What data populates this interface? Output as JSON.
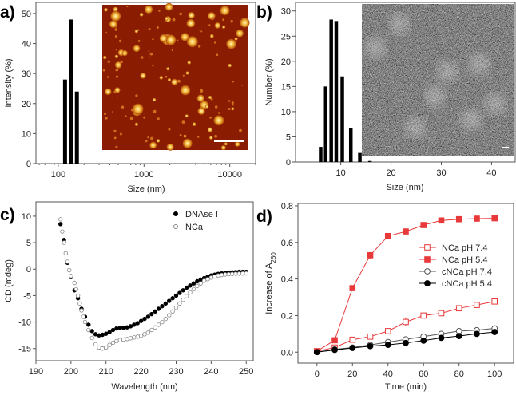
{
  "chart_data": [
    {
      "panel_label": "a)",
      "type": "bar",
      "xscale": "log",
      "xlabel": "Size (nm)",
      "ylabel": "Intensity (%)",
      "xlim": [
        55,
        20000
      ],
      "ylim": [
        0,
        53.7
      ],
      "xticks": [
        100,
        1000,
        10000
      ],
      "xtick_labels": [
        "100",
        "1000",
        "10000"
      ],
      "yticks": [
        0,
        10,
        20,
        30,
        40,
        50
      ],
      "ytick_labels": [
        "0",
        "10",
        "20",
        "30",
        "40",
        "50"
      ],
      "x": [
        120,
        140,
        165
      ],
      "values": [
        28,
        48,
        24
      ],
      "bar_color": "#000000",
      "inset": "AFM image of particles with scale bar"
    },
    {
      "panel_label": "b)",
      "type": "bar",
      "xlabel": "Size (nm)",
      "ylabel": "Number (%)",
      "xlim": [
        1,
        44.7
      ],
      "ylim": [
        0,
        31.7
      ],
      "xticks": [
        10,
        20,
        30,
        40
      ],
      "xtick_labels": [
        "10",
        "20",
        "30",
        "40"
      ],
      "yticks": [
        0,
        5,
        10,
        15,
        20,
        25,
        30
      ],
      "ytick_labels": [
        "0",
        "5",
        "10",
        "15",
        "20",
        "25",
        "30"
      ],
      "x": [
        6,
        7,
        8.1,
        9.1,
        10.3,
        12,
        13.8,
        15.8
      ],
      "values": [
        3,
        15,
        28.3,
        28,
        17,
        6.8,
        1.8,
        0.2
      ],
      "bar_color": "#000000",
      "inset": "TEM image with scale bar"
    },
    {
      "panel_label": "c)",
      "type": "scatter",
      "xlabel": "Wavelength (nm)",
      "ylabel": "CD (mdeg)",
      "xlim": [
        190,
        252
      ],
      "ylim": [
        -17.3,
        12.7
      ],
      "xticks": [
        190,
        200,
        210,
        220,
        230,
        240,
        250
      ],
      "xtick_labels": [
        "190",
        "200",
        "210",
        "220",
        "230",
        "240",
        "250"
      ],
      "yticks": [
        -15,
        -10,
        -5,
        0,
        5,
        10
      ],
      "ytick_labels": [
        "-15",
        "-10",
        "-5",
        "0",
        "5",
        "10"
      ],
      "legend_position": "top-right",
      "series": [
        {
          "name": "DNAse I",
          "marker": "filled-circle",
          "color": "#000000",
          "x": [
            197,
            198,
            199,
            200,
            201,
            202,
            203,
            204,
            205,
            206,
            207,
            208,
            209,
            210,
            211,
            212,
            213,
            214,
            215,
            216,
            217,
            218,
            219,
            220,
            221,
            222,
            223,
            224,
            225,
            226,
            227,
            228,
            229,
            230,
            231,
            232,
            233,
            234,
            235,
            236,
            237,
            238,
            239,
            240,
            241,
            242,
            243,
            244,
            245,
            246,
            247,
            248,
            249,
            250
          ],
          "y": [
            8.5,
            5.5,
            1.2,
            -1.5,
            -4,
            -5.5,
            -7.5,
            -9,
            -10.5,
            -11.7,
            -12.3,
            -12.5,
            -12.4,
            -12.2,
            -11.9,
            -11.5,
            -11.2,
            -11.1,
            -11.05,
            -11,
            -10.8,
            -10.5,
            -10.2,
            -9.8,
            -9.4,
            -9,
            -8.5,
            -8,
            -7.5,
            -7,
            -6.5,
            -6,
            -5.5,
            -5,
            -4.5,
            -4,
            -3.5,
            -3.1,
            -2.7,
            -2.3,
            -2,
            -1.7,
            -1.45,
            -1.2,
            -1.05,
            -0.9,
            -0.8,
            -0.7,
            -0.65,
            -0.6,
            -0.55,
            -0.5,
            -0.5,
            -0.5
          ]
        },
        {
          "name": "NCa",
          "marker": "open-circle",
          "color": "#888888",
          "x": [
            197,
            197.5,
            198,
            198.5,
            199,
            199.5,
            200,
            201,
            201.5,
            202,
            202.5,
            203,
            203.5,
            204,
            205,
            206,
            207,
            208,
            209,
            210,
            211,
            212,
            213,
            214,
            215,
            216,
            217,
            218,
            219,
            220,
            221,
            222,
            223,
            224,
            225,
            226,
            227,
            228,
            229,
            230,
            231,
            232,
            233,
            234,
            235,
            236,
            237,
            238,
            239,
            240,
            241,
            242,
            243,
            244,
            245,
            246,
            247,
            248,
            249,
            250
          ],
          "y": [
            9.4,
            7.1,
            5,
            3,
            1.4,
            -0.2,
            -1.3,
            -2.6,
            -3.8,
            -5,
            -6.5,
            -7.8,
            -9,
            -10,
            -11.5,
            -13,
            -14.2,
            -14.8,
            -15,
            -14.8,
            -14.3,
            -13.9,
            -13.6,
            -13.4,
            -13.3,
            -13.2,
            -13.05,
            -12.9,
            -12.75,
            -12.6,
            -12.3,
            -12,
            -11.5,
            -11,
            -10.5,
            -10,
            -9.4,
            -8.7,
            -8,
            -7.3,
            -6.5,
            -5.8,
            -5.1,
            -4.4,
            -3.8,
            -3.2,
            -2.7,
            -2.2,
            -1.9,
            -1.6,
            -1.4,
            -1.2,
            -1.1,
            -1,
            -0.95,
            -0.9,
            -0.87,
            -0.85,
            -0.82,
            -0.8
          ]
        }
      ]
    },
    {
      "panel_label": "d)",
      "type": "line",
      "xlabel": "Time (min)",
      "ylabel_main": "Increase of A",
      "ylabel_sub": "260",
      "xlim": [
        -10.7,
        110.7
      ],
      "ylim": [
        -0.06,
        0.813
      ],
      "xticks": [
        0,
        20,
        40,
        60,
        80,
        100
      ],
      "xtick_labels": [
        "0",
        "20",
        "40",
        "60",
        "80",
        "100"
      ],
      "yticks": [
        0,
        0.2,
        0.4,
        0.6,
        0.8
      ],
      "ytick_labels": [
        "0.0",
        "0.2",
        "0.4",
        "0.6",
        "0.8"
      ],
      "legend_position": "center-right",
      "x": [
        0,
        10,
        20,
        30,
        40,
        50,
        60,
        70,
        80,
        90,
        100
      ],
      "series": [
        {
          "name": "NCa pH 7.4",
          "marker": "open-square",
          "color": "#e8393a",
          "values": [
            0.005,
            0.025,
            0.068,
            0.085,
            0.115,
            0.165,
            0.2,
            0.213,
            0.24,
            0.258,
            0.277
          ],
          "error_at": {
            "50": 0.022
          }
        },
        {
          "name": "NCa pH 5.4",
          "marker": "filled-square",
          "color": "#e8393a",
          "values": [
            0.005,
            0.065,
            0.35,
            0.53,
            0.635,
            0.66,
            0.695,
            0.72,
            0.727,
            0.73,
            0.732
          ],
          "error_at": {
            "30": 0.015
          }
        },
        {
          "name": "cNCa pH 7.4",
          "marker": "open-circle",
          "color": "#555555",
          "values": [
            0,
            0.015,
            0.025,
            0.04,
            0.055,
            0.07,
            0.085,
            0.1,
            0.115,
            0.12,
            0.13
          ]
        },
        {
          "name": "cNCa pH 5.4",
          "marker": "filled-circle",
          "color": "#000000",
          "values": [
            0,
            0.012,
            0.023,
            0.033,
            0.04,
            0.05,
            0.063,
            0.078,
            0.088,
            0.1,
            0.11
          ]
        }
      ]
    }
  ]
}
